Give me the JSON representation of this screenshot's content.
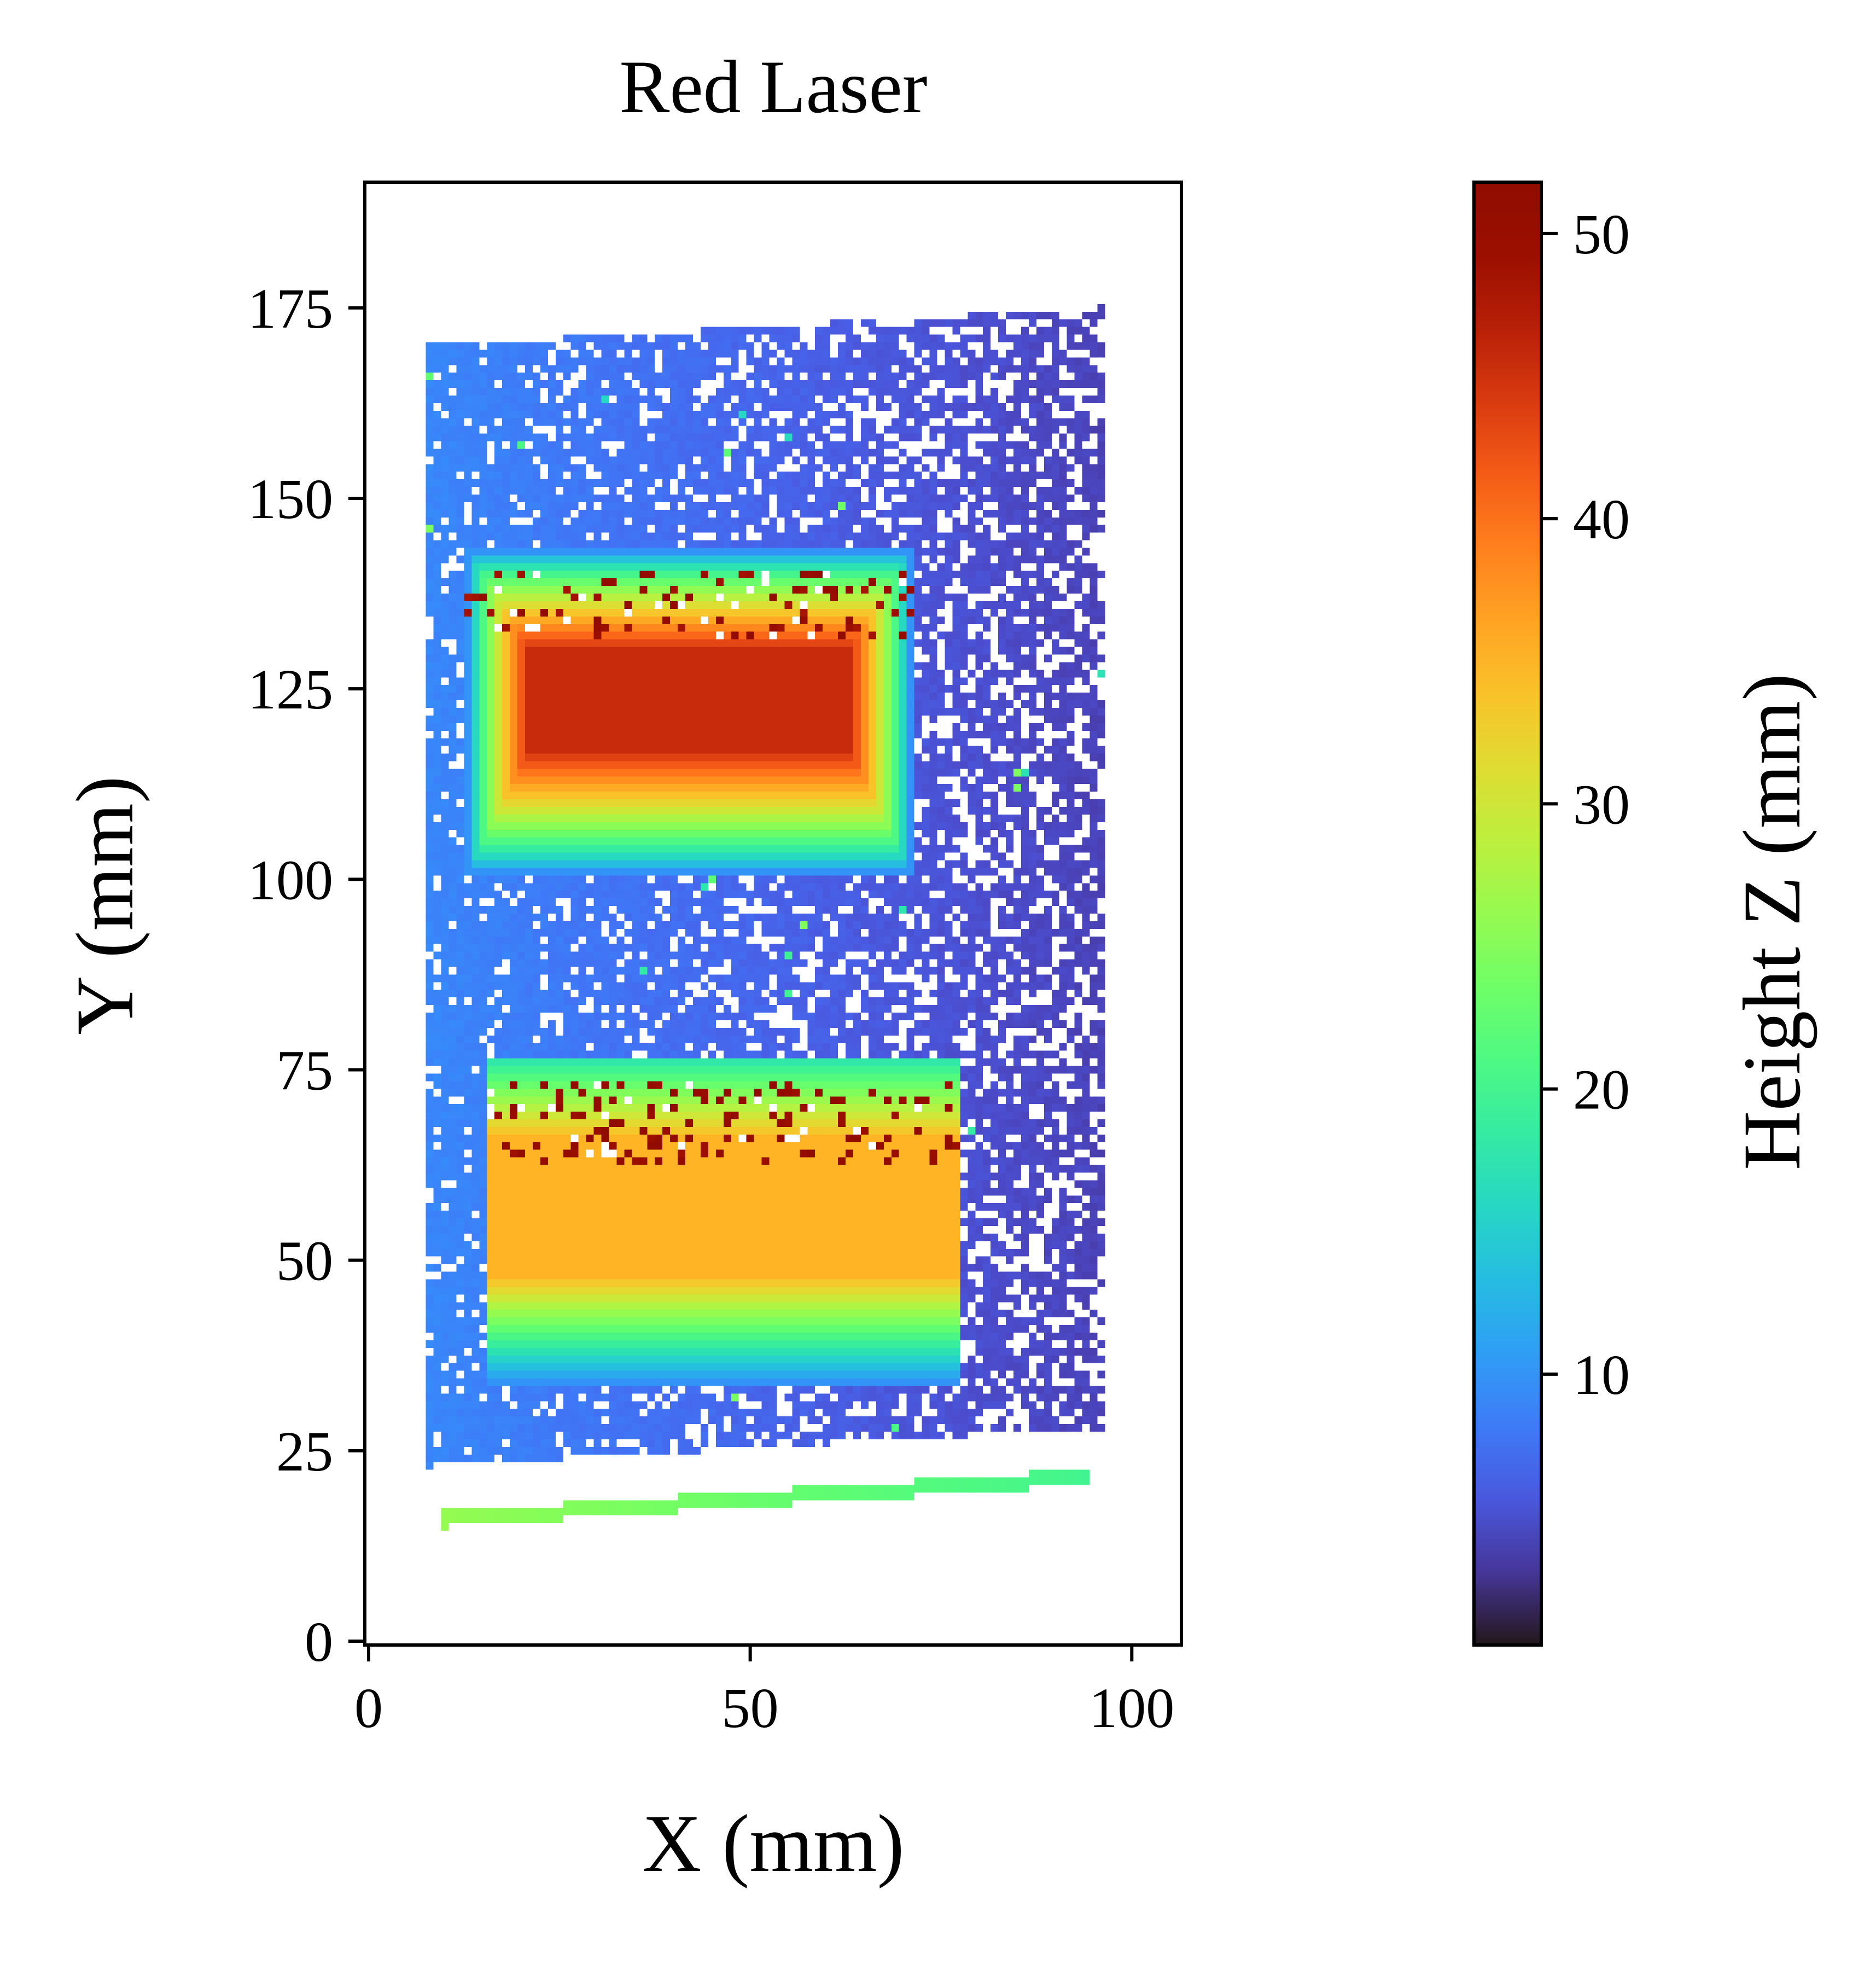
{
  "chart_data": {
    "type": "heatmap",
    "title": "Red Laser",
    "xlabel": "X (mm)",
    "ylabel": "Y (mm)",
    "xlim": [
      -0.5,
      106.5
    ],
    "ylim": [
      -0.5,
      191.5
    ],
    "xticks": [
      0,
      50,
      100
    ],
    "yticks": [
      0,
      25,
      50,
      75,
      100,
      125,
      150,
      175
    ],
    "colorbar": {
      "label": "Height Z (mm)",
      "colormap": "turbo",
      "vmin": 0.5,
      "vmax": 51.8,
      "ticks": [
        10,
        20,
        30,
        40,
        50
      ]
    },
    "grid": false,
    "regions": [
      {
        "name": "base plate",
        "x": [
          8,
          96
        ],
        "y": [
          23,
          175
        ],
        "z_left": 9.0,
        "z_right": 4.0,
        "sparsity": "heavy, more missing points on right"
      },
      {
        "name": "upper block",
        "x": [
          13,
          71
        ],
        "y": [
          101,
          143
        ],
        "z_edge": 10,
        "z_top": 45.5,
        "top_x": [
          21,
          63
        ],
        "top_y": [
          117,
          130
        ]
      },
      {
        "name": "lower block",
        "x": [
          16,
          77
        ],
        "y": [
          34,
          76
        ],
        "z_edge": 10,
        "z_top": 35.0,
        "top_y": [
          48,
          66
        ]
      },
      {
        "name": "bottom strip",
        "x": [
          10,
          94
        ],
        "y_start": [
          15.5,
          16.5
        ],
        "y_end": [
          21,
          22
        ],
        "z_left": 26,
        "z_right": 20
      }
    ]
  }
}
